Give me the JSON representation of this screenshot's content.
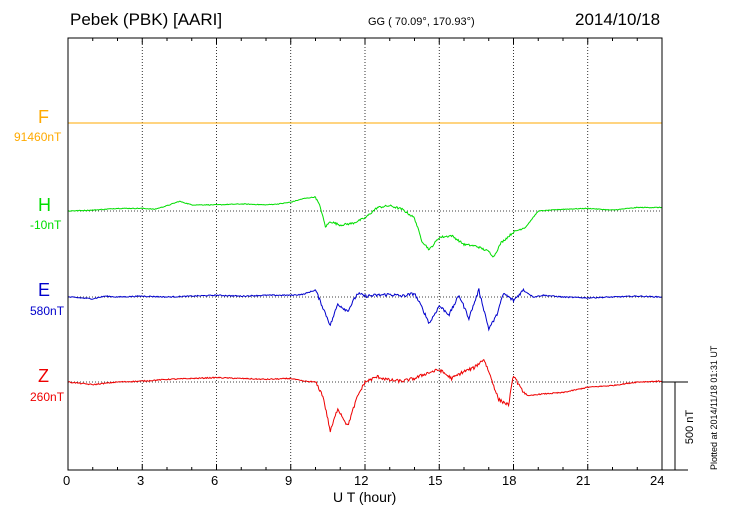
{
  "header": {
    "station": "Pebek (PBK)  [AARI]",
    "coords": "GG ( 70.09°, 170.93°)",
    "date": "2014/10/18"
  },
  "footer": {
    "plotted": "Plotted at 2014/11/18 01:31  UT"
  },
  "colors": {
    "F": "#ffaa00",
    "H": "#00dd00",
    "E": "#0000cc",
    "Z": "#ee0000",
    "grid": "#000000"
  },
  "chart_data": {
    "type": "line",
    "xlabel": "U T (hour)",
    "xlim": [
      0,
      24
    ],
    "xticks": [
      "0",
      "3",
      "6",
      "9",
      "12",
      "15",
      "18",
      "21",
      "24"
    ],
    "scale_bar": {
      "label": "500 nT",
      "value_nT": 500
    },
    "series": [
      {
        "name": "F",
        "baseline": "91460nT",
        "x": [
          0,
          24
        ],
        "y": [
          0,
          0
        ]
      },
      {
        "name": "H",
        "baseline": "-10nT",
        "x": [
          0,
          1,
          2,
          3,
          3.5,
          4,
          4.5,
          5,
          6,
          7,
          8,
          8.5,
          9,
          9.5,
          10,
          10.2,
          10.4,
          10.6,
          11,
          11.5,
          12,
          12.5,
          13,
          13.5,
          14,
          14.3,
          14.6,
          15,
          15.5,
          16,
          16.5,
          17,
          17.2,
          17.5,
          18,
          18.5,
          19,
          20,
          21,
          22,
          23,
          24
        ],
        "y": [
          0,
          5,
          15,
          15,
          10,
          30,
          55,
          35,
          35,
          40,
          35,
          40,
          50,
          70,
          80,
          20,
          -90,
          -60,
          -80,
          -70,
          -40,
          20,
          30,
          10,
          -40,
          -170,
          -220,
          -150,
          -140,
          -190,
          -200,
          -230,
          -260,
          -180,
          -120,
          -90,
          0,
          10,
          15,
          5,
          20,
          20
        ]
      },
      {
        "name": "E",
        "baseline": "580nT",
        "x": [
          0,
          1,
          1.5,
          2,
          3,
          4,
          5,
          6,
          7,
          8,
          9,
          9.5,
          10,
          10.3,
          10.6,
          10.9,
          11.3,
          11.7,
          12,
          12.5,
          13,
          13.5,
          14,
          14.3,
          14.6,
          15,
          15.4,
          15.8,
          16.2,
          16.6,
          17,
          17.3,
          17.6,
          18,
          18.4,
          18.8,
          19.2,
          20,
          21,
          22,
          23,
          24
        ],
        "y": [
          0,
          -10,
          5,
          0,
          5,
          0,
          5,
          10,
          5,
          10,
          10,
          15,
          40,
          -60,
          -160,
          -40,
          -80,
          20,
          5,
          10,
          15,
          5,
          20,
          -60,
          -150,
          -50,
          -100,
          10,
          -120,
          40,
          -180,
          -110,
          20,
          -20,
          40,
          0,
          10,
          0,
          -5,
          0,
          5,
          0
        ]
      },
      {
        "name": "Z",
        "baseline": "260nT",
        "x": [
          0,
          1,
          2,
          3,
          4,
          5,
          6,
          7,
          8,
          9,
          9.5,
          10,
          10.3,
          10.6,
          10.9,
          11.3,
          11.7,
          12,
          12.5,
          13,
          13.5,
          14,
          14.5,
          15,
          15.5,
          16,
          16.4,
          16.8,
          17,
          17.4,
          17.8,
          18,
          18.3,
          18.6,
          19,
          20,
          21,
          22,
          23,
          24
        ],
        "y": [
          0,
          -15,
          0,
          5,
          15,
          20,
          25,
          20,
          15,
          20,
          5,
          0,
          -80,
          -280,
          -150,
          -250,
          -80,
          0,
          30,
          10,
          5,
          20,
          50,
          70,
          20,
          60,
          80,
          130,
          60,
          -100,
          -130,
          40,
          -40,
          -80,
          -70,
          -60,
          -30,
          -20,
          0,
          5
        ]
      }
    ]
  }
}
